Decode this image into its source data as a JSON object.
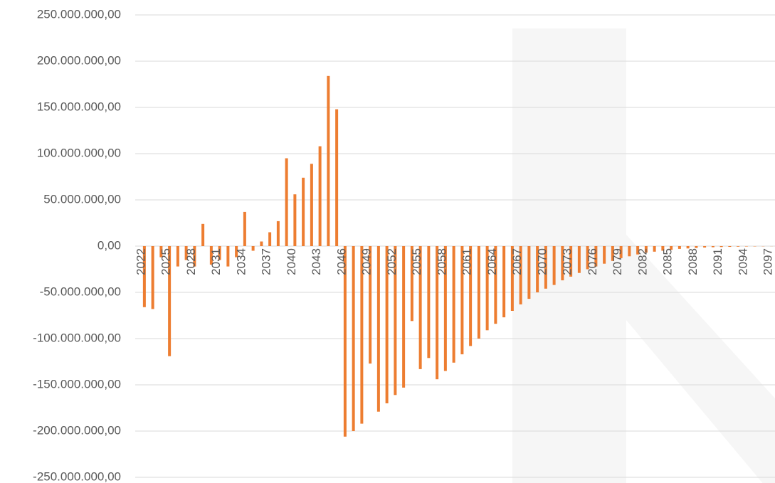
{
  "chart_data": {
    "type": "bar",
    "categories": [
      "2022",
      null,
      null,
      "2025",
      null,
      null,
      "2028",
      null,
      null,
      "2031",
      null,
      null,
      "2034",
      null,
      null,
      "2037",
      null,
      null,
      "2040",
      null,
      null,
      "2043",
      null,
      null,
      "2046",
      null,
      null,
      "2049",
      null,
      null,
      "2052",
      null,
      null,
      "2055",
      null,
      null,
      "2058",
      null,
      null,
      "2061",
      null,
      null,
      "2064",
      null,
      null,
      "2067",
      null,
      null,
      "2070",
      null,
      null,
      "2073",
      null,
      null,
      "2076",
      null,
      null,
      "2079",
      null,
      null,
      "2082",
      null,
      null,
      "2085",
      null,
      null,
      "2088",
      null,
      null,
      "2091",
      null,
      null,
      "2094",
      null,
      null,
      "2097"
    ],
    "values": [
      -66000000,
      -68000000,
      -12000000,
      -119000000,
      -22000000,
      -15000000,
      -22000000,
      24000000,
      -20000000,
      -15000000,
      -22000000,
      -12000000,
      37000000,
      -5000000,
      5000000,
      15000000,
      27000000,
      95000000,
      56000000,
      74000000,
      89000000,
      108000000,
      184000000,
      148000000,
      -206000000,
      -200000000,
      -192000000,
      -127000000,
      -179000000,
      -170000000,
      -161000000,
      -153000000,
      -81000000,
      -133000000,
      -121000000,
      -144000000,
      -135000000,
      -126000000,
      -117000000,
      -108000000,
      -100000000,
      -91000000,
      -84000000,
      -77000000,
      -70000000,
      -63000000,
      -57000000,
      -50000000,
      -46000000,
      -42000000,
      -37000000,
      -33000000,
      -29000000,
      -25000000,
      -22000000,
      -19000000,
      -16000000,
      -13000000,
      -11000000,
      -9000000,
      -7000000,
      -6000000,
      -5000000,
      -4000000,
      -3000000,
      -2500000,
      -2000000,
      -1500000,
      -1200000,
      -1000000,
      -800000,
      -600000,
      -400000,
      -300000,
      -200000,
      -100000
    ],
    "color": "#ed7d31",
    "ylim": [
      -250000000,
      250000000
    ],
    "yticks": [
      {
        "value": -250000000,
        "label": "-250.000.000,00"
      },
      {
        "value": -200000000,
        "label": "-200.000.000,00"
      },
      {
        "value": -150000000,
        "label": "-150.000.000,00"
      },
      {
        "value": -100000000,
        "label": "-100.000.000,00"
      },
      {
        "value": -50000000,
        "label": "-50.000.000,00"
      },
      {
        "value": 0,
        "label": "0,00"
      },
      {
        "value": 50000000,
        "label": "50.000.000,00"
      },
      {
        "value": 100000000,
        "label": "100.000.000,00"
      },
      {
        "value": 150000000,
        "label": "150.000.000,00"
      },
      {
        "value": 200000000,
        "label": "200.000.000,00"
      },
      {
        "value": 250000000,
        "label": "250.000.000,00"
      }
    ],
    "grid": true
  }
}
